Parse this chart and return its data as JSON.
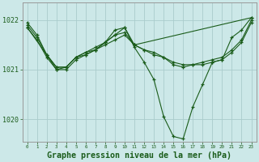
{
  "background_color": "#cce8e8",
  "plot_bg_color": "#cce8e8",
  "grid_color": "#aacccc",
  "line_color": "#1a5c1a",
  "marker_color": "#1a5c1a",
  "title": "Graphe pression niveau de la mer (hPa)",
  "title_fontsize": 7.2,
  "ylim": [
    1019.55,
    1022.35
  ],
  "xlim": [
    -0.5,
    23.5
  ],
  "yticks": [
    1020,
    1021,
    1022
  ],
  "xticks": [
    0,
    1,
    2,
    3,
    4,
    5,
    6,
    7,
    8,
    9,
    10,
    11,
    12,
    13,
    14,
    15,
    16,
    17,
    18,
    19,
    20,
    21,
    22,
    23
  ],
  "series": [
    {
      "x": [
        0,
        1,
        2,
        3,
        4,
        5,
        6,
        7,
        8,
        9,
        10,
        11,
        12,
        13,
        14,
        15,
        16,
        17,
        18,
        19,
        20,
        21,
        22,
        23
      ],
      "y": [
        1021.95,
        1021.7,
        1021.3,
        1021.0,
        1021.05,
        1021.25,
        1021.3,
        1021.4,
        1021.55,
        1021.8,
        1021.85,
        1021.45,
        1021.15,
        1020.8,
        1020.05,
        1019.65,
        1019.6,
        1020.25,
        1020.7,
        1021.15,
        1021.2,
        1021.65,
        1021.8,
        1022.05
      ]
    },
    {
      "x": [
        0,
        1,
        2,
        3,
        4,
        5,
        6,
        7,
        8,
        9,
        10,
        11,
        12,
        13,
        14,
        15,
        16,
        17,
        18,
        19,
        20,
        21,
        22,
        23
      ],
      "y": [
        1021.85,
        1021.6,
        1021.25,
        1021.0,
        1021.0,
        1021.2,
        1021.3,
        1021.4,
        1021.5,
        1021.6,
        1021.7,
        1021.5,
        1021.4,
        1021.35,
        1021.25,
        1021.1,
        1021.05,
        1021.1,
        1021.1,
        1021.15,
        1021.2,
        1021.35,
        1021.55,
        1021.95
      ]
    },
    {
      "x": [
        0,
        2,
        3,
        4,
        5,
        6,
        7,
        8,
        9,
        10,
        11,
        23
      ],
      "y": [
        1021.85,
        1021.3,
        1021.05,
        1021.05,
        1021.25,
        1021.35,
        1021.4,
        1021.55,
        1021.7,
        1021.85,
        1021.5,
        1022.05
      ]
    },
    {
      "x": [
        0,
        1,
        2,
        3,
        4,
        5,
        6,
        7,
        8,
        9,
        10,
        11,
        12,
        13,
        14,
        15,
        16,
        17,
        18,
        19,
        20,
        21,
        22,
        23
      ],
      "y": [
        1021.9,
        1021.65,
        1021.3,
        1021.05,
        1021.05,
        1021.25,
        1021.35,
        1021.45,
        1021.55,
        1021.7,
        1021.75,
        1021.5,
        1021.4,
        1021.3,
        1021.25,
        1021.15,
        1021.1,
        1021.1,
        1021.15,
        1021.2,
        1021.25,
        1021.4,
        1021.6,
        1022.0
      ]
    }
  ]
}
